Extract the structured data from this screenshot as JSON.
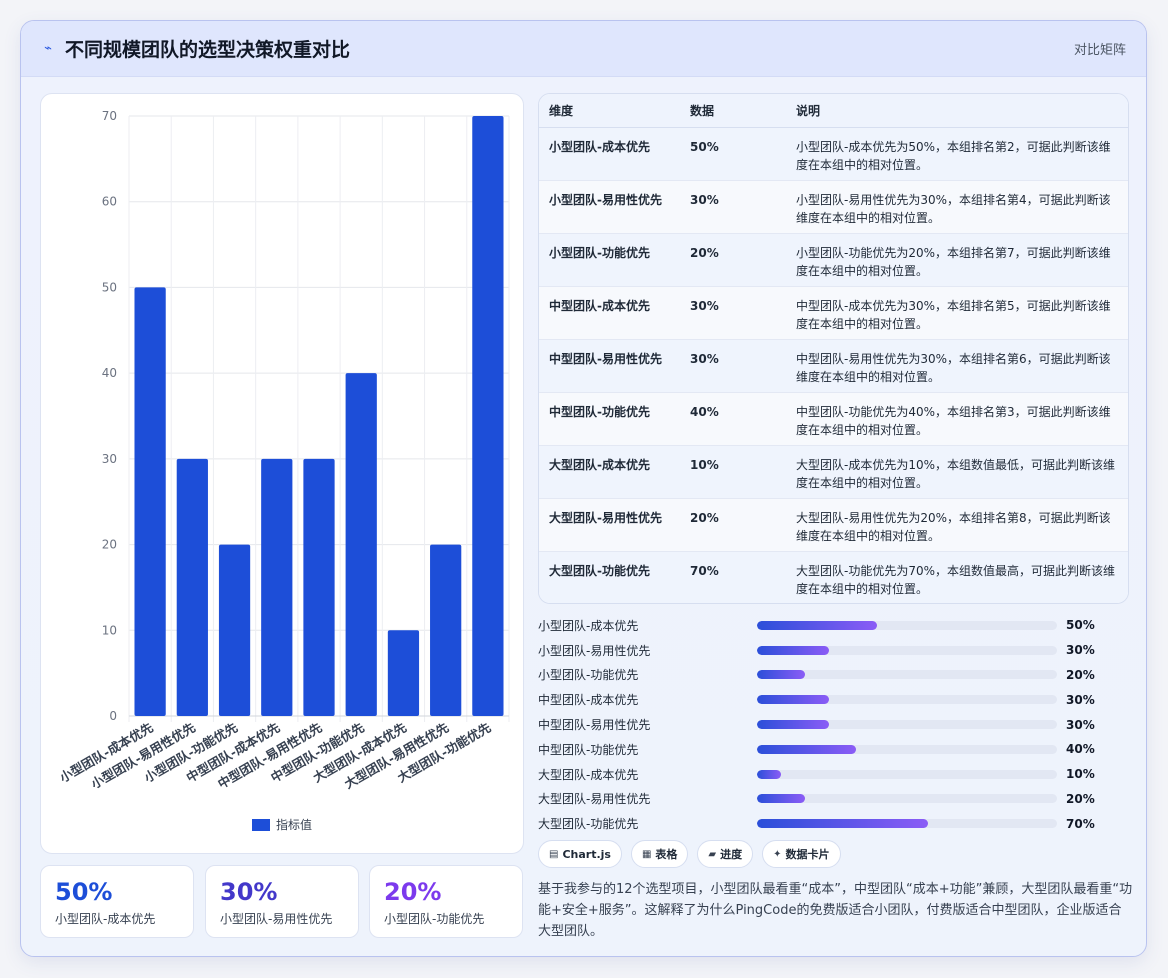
{
  "header": {
    "icon": "trend-line-icon",
    "title": "不同规模团队的选型决策权重对比",
    "tag": "对比矩阵"
  },
  "chart_data": {
    "type": "bar",
    "categories": [
      "小型团队-成本优先",
      "小型团队-易用性优先",
      "小型团队-功能优先",
      "中型团队-成本优先",
      "中型团队-易用性优先",
      "中型团队-功能优先",
      "大型团队-成本优先",
      "大型团队-易用性优先",
      "大型团队-功能优先"
    ],
    "series": [
      {
        "name": "指标值",
        "values": [
          50,
          30,
          20,
          30,
          30,
          40,
          10,
          20,
          70
        ]
      }
    ],
    "ylim": [
      0,
      70
    ],
    "yticks": [
      0,
      10,
      20,
      30,
      40,
      50,
      60,
      70
    ],
    "grid": true,
    "legend": "bottom",
    "bar_color": "#1d4ed8"
  },
  "stats": [
    {
      "value": "50%",
      "label": "小型团队-成本优先",
      "color": "#1d4ed8"
    },
    {
      "value": "30%",
      "label": "小型团队-易用性优先",
      "color": "#4338ca"
    },
    {
      "value": "20%",
      "label": "小型团队-功能优先",
      "color": "#7c3aed"
    }
  ],
  "table": {
    "headers": [
      "维度",
      "数据",
      "说明"
    ],
    "rows": [
      {
        "dim": "小型团队-成本优先",
        "data": "50%",
        "desc": "小型团队-成本优先为50%，本组排名第2，可据此判断该维度在本组中的相对位置。"
      },
      {
        "dim": "小型团队-易用性优先",
        "data": "30%",
        "desc": "小型团队-易用性优先为30%，本组排名第4，可据此判断该维度在本组中的相对位置。"
      },
      {
        "dim": "小型团队-功能优先",
        "data": "20%",
        "desc": "小型团队-功能优先为20%，本组排名第7，可据此判断该维度在本组中的相对位置。"
      },
      {
        "dim": "中型团队-成本优先",
        "data": "30%",
        "desc": "中型团队-成本优先为30%，本组排名第5，可据此判断该维度在本组中的相对位置。"
      },
      {
        "dim": "中型团队-易用性优先",
        "data": "30%",
        "desc": "中型团队-易用性优先为30%，本组排名第6，可据此判断该维度在本组中的相对位置。"
      },
      {
        "dim": "中型团队-功能优先",
        "data": "40%",
        "desc": "中型团队-功能优先为40%，本组排名第3，可据此判断该维度在本组中的相对位置。"
      },
      {
        "dim": "大型团队-成本优先",
        "data": "10%",
        "desc": "大型团队-成本优先为10%，本组数值最低，可据此判断该维度在本组中的相对位置。"
      },
      {
        "dim": "大型团队-易用性优先",
        "data": "20%",
        "desc": "大型团队-易用性优先为20%，本组排名第8，可据此判断该维度在本组中的相对位置。"
      },
      {
        "dim": "大型团队-功能优先",
        "data": "70%",
        "desc": "大型团队-功能优先为70%，本组数值最高，可据此判断该维度在本组中的相对位置。"
      }
    ]
  },
  "progress": [
    {
      "label": "小型团队-成本优先",
      "value": "50%",
      "fraction": 0.4
    },
    {
      "label": "小型团队-易用性优先",
      "value": "30%",
      "fraction": 0.24
    },
    {
      "label": "小型团队-功能优先",
      "value": "20%",
      "fraction": 0.16
    },
    {
      "label": "中型团队-成本优先",
      "value": "30%",
      "fraction": 0.24
    },
    {
      "label": "中型团队-易用性优先",
      "value": "30%",
      "fraction": 0.24
    },
    {
      "label": "中型团队-功能优先",
      "value": "40%",
      "fraction": 0.33
    },
    {
      "label": "大型团队-成本优先",
      "value": "10%",
      "fraction": 0.08
    },
    {
      "label": "大型团队-易用性优先",
      "value": "20%",
      "fraction": 0.16
    },
    {
      "label": "大型团队-功能优先",
      "value": "70%",
      "fraction": 0.57
    }
  ],
  "chips": [
    {
      "icon": "chart-icon",
      "glyph": "▤",
      "label": "Chart.js"
    },
    {
      "icon": "table-icon",
      "glyph": "▦",
      "label": "表格"
    },
    {
      "icon": "progress-icon",
      "glyph": "▰",
      "label": "进度"
    },
    {
      "icon": "sparkle-icon",
      "glyph": "✦",
      "label": "数据卡片"
    }
  ],
  "note": "基于我参与的12个选型项目，小型团队最看重“成本”，中型团队“成本+功能”兼顾，大型团队最看重“功能+安全+服务”。这解释了为什么PingCode的免费版适合小团队，付费版适合中型团队，企业版适合大型团队。"
}
